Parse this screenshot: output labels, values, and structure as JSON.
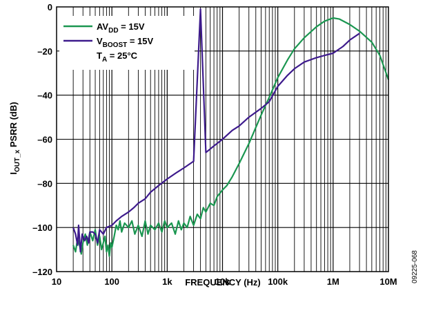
{
  "chart_data": {
    "type": "line",
    "xscale": "log",
    "xlim": [
      10,
      10000000
    ],
    "ylim": [
      -120,
      0
    ],
    "grid": true,
    "legend_position": "top-left",
    "xlabel": "FREQUENCY (Hz)",
    "ylabel": {
      "main": "I",
      "sub": "OUT_x",
      "rest": " PSRR (dB)"
    },
    "xticks": [
      {
        "value": 10,
        "label": "10"
      },
      {
        "value": 100,
        "label": "100"
      },
      {
        "value": 1000,
        "label": "1k"
      },
      {
        "value": 10000,
        "label": "10k"
      },
      {
        "value": 100000,
        "label": "100k"
      },
      {
        "value": 1000000,
        "label": "1M"
      },
      {
        "value": 10000000,
        "label": "10M"
      }
    ],
    "yticks": [
      {
        "value": 0,
        "label": "0"
      },
      {
        "value": -20,
        "label": "–20"
      },
      {
        "value": -40,
        "label": "–40"
      },
      {
        "value": -60,
        "label": "–60"
      },
      {
        "value": -80,
        "label": "–80"
      },
      {
        "value": -100,
        "label": "–100"
      },
      {
        "value": -120,
        "label": "–120"
      }
    ],
    "series": [
      {
        "name": "AVDD = 15V",
        "label_parts": [
          "AV",
          "DD",
          " = 15V"
        ],
        "color": "#1a9650",
        "points": [
          [
            20,
            -108
          ],
          [
            22,
            -111
          ],
          [
            24,
            -105
          ],
          [
            26,
            -108
          ],
          [
            28,
            -112
          ],
          [
            30,
            -107
          ],
          [
            33,
            -103
          ],
          [
            36,
            -108
          ],
          [
            40,
            -102
          ],
          [
            45,
            -106
          ],
          [
            50,
            -101
          ],
          [
            55,
            -108
          ],
          [
            60,
            -104
          ],
          [
            65,
            -110
          ],
          [
            70,
            -107
          ],
          [
            75,
            -104
          ],
          [
            80,
            -111
          ],
          [
            85,
            -108
          ],
          [
            90,
            -113
          ],
          [
            95,
            -107
          ],
          [
            100,
            -109
          ],
          [
            110,
            -104
          ],
          [
            120,
            -99
          ],
          [
            130,
            -101
          ],
          [
            140,
            -97
          ],
          [
            150,
            -102
          ],
          [
            170,
            -98
          ],
          [
            200,
            -100
          ],
          [
            230,
            -97
          ],
          [
            260,
            -103
          ],
          [
            300,
            -99
          ],
          [
            350,
            -104
          ],
          [
            400,
            -97
          ],
          [
            450,
            -103
          ],
          [
            500,
            -99
          ],
          [
            600,
            -101
          ],
          [
            700,
            -98
          ],
          [
            800,
            -102
          ],
          [
            900,
            -97
          ],
          [
            1000,
            -100
          ],
          [
            1200,
            -98
          ],
          [
            1400,
            -103
          ],
          [
            1600,
            -97
          ],
          [
            1800,
            -101
          ],
          [
            2000,
            -98
          ],
          [
            2300,
            -100
          ],
          [
            2600,
            -95
          ],
          [
            3000,
            -99
          ],
          [
            3500,
            -94
          ],
          [
            4000,
            -96
          ],
          [
            4500,
            -91
          ],
          [
            5000,
            -93
          ],
          [
            6000,
            -89
          ],
          [
            7000,
            -90
          ],
          [
            8000,
            -86
          ],
          [
            10000,
            -83
          ],
          [
            12000,
            -81
          ],
          [
            15000,
            -77
          ],
          [
            20000,
            -71
          ],
          [
            30000,
            -62
          ],
          [
            50000,
            -49
          ],
          [
            70000,
            -41
          ],
          [
            100000,
            -32
          ],
          [
            150000,
            -24
          ],
          [
            200000,
            -19
          ],
          [
            300000,
            -14
          ],
          [
            500000,
            -9
          ],
          [
            700000,
            -6.5
          ],
          [
            1000000,
            -5
          ],
          [
            1300000,
            -5.5
          ],
          [
            2000000,
            -8
          ],
          [
            3000000,
            -11
          ],
          [
            5000000,
            -16
          ],
          [
            7000000,
            -22
          ],
          [
            10000000,
            -33
          ]
        ]
      },
      {
        "name": "VBOOST = 15V",
        "label_parts": [
          "V",
          "BOOST",
          " = 15V"
        ],
        "color": "#3d1a8c",
        "points": [
          [
            20,
            -100
          ],
          [
            22,
            -103
          ],
          [
            24,
            -108
          ],
          [
            25,
            -99
          ],
          [
            27,
            -111
          ],
          [
            29,
            -103
          ],
          [
            32,
            -106
          ],
          [
            35,
            -104
          ],
          [
            38,
            -107
          ],
          [
            40,
            -102
          ],
          [
            45,
            -102
          ],
          [
            50,
            -103
          ],
          [
            55,
            -107
          ],
          [
            60,
            -101
          ],
          [
            70,
            -103
          ],
          [
            80,
            -100
          ],
          [
            100,
            -99
          ],
          [
            120,
            -97
          ],
          [
            150,
            -95
          ],
          [
            200,
            -93
          ],
          [
            250,
            -91
          ],
          [
            300,
            -89
          ],
          [
            400,
            -87
          ],
          [
            500,
            -84
          ],
          [
            700,
            -81
          ],
          [
            1000,
            -78
          ],
          [
            1500,
            -75
          ],
          [
            2000,
            -73
          ],
          [
            3000,
            -70
          ],
          [
            5000,
            -66
          ],
          [
            7000,
            -63
          ],
          [
            10000,
            -60
          ],
          [
            15000,
            -56
          ],
          [
            20000,
            -54
          ],
          [
            30000,
            -50
          ],
          [
            50000,
            -46
          ],
          [
            70000,
            -43
          ],
          [
            100000,
            -36
          ],
          [
            150000,
            -31
          ],
          [
            200000,
            -28
          ],
          [
            300000,
            -25
          ],
          [
            500000,
            -23
          ],
          [
            700000,
            -22
          ],
          [
            1000000,
            -21
          ],
          [
            1500000,
            -18
          ],
          [
            2000000,
            -15
          ],
          [
            3000000,
            -12
          ],
          [
            4000,
            -1
          ]
        ]
      }
    ],
    "annotation": {
      "main": "T",
      "sub": "A",
      "rest": " = 25°C"
    }
  },
  "figure_id": "09225-068"
}
